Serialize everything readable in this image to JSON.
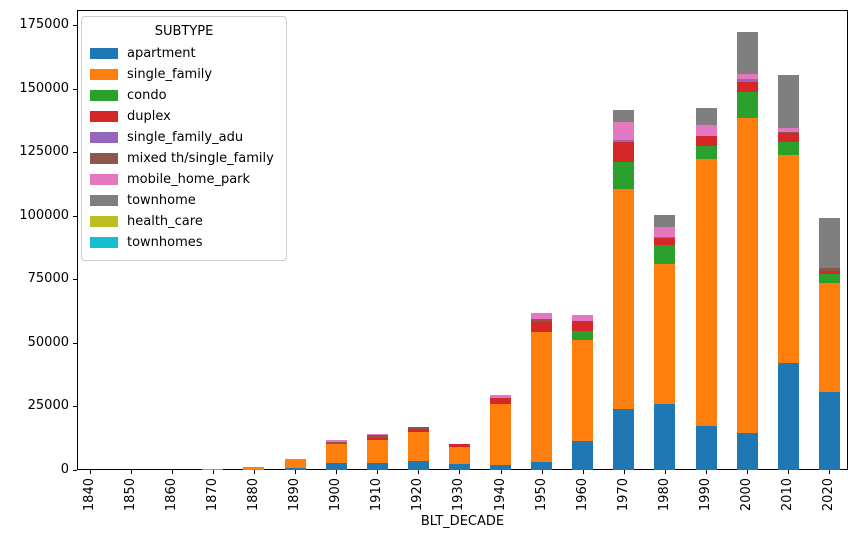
{
  "chart_data": {
    "type": "bar",
    "stacked": true,
    "title": "",
    "xlabel": "BLT_DECADE",
    "ylabel": "",
    "legend_title": "SUBTYPE",
    "legend_position": "upper left",
    "grid": false,
    "ylim": [
      0,
      180900
    ],
    "yticks": [
      0,
      25000,
      50000,
      75000,
      100000,
      125000,
      150000,
      175000
    ],
    "categories": [
      "1840",
      "1850",
      "1860",
      "1870",
      "1880",
      "1890",
      "1900",
      "1910",
      "1920",
      "1930",
      "1940",
      "1950",
      "1960",
      "1970",
      "1980",
      "1990",
      "2000",
      "2010",
      "2020"
    ],
    "series": [
      {
        "name": "apartment",
        "color": "#1f77b4",
        "values": [
          0,
          0,
          0,
          0,
          0,
          700,
          2700,
          2600,
          3600,
          2400,
          2000,
          3300,
          11400,
          23900,
          26000,
          17400,
          14700,
          42000,
          30800
        ]
      },
      {
        "name": "single_family",
        "color": "#ff7f0e",
        "values": [
          0,
          0,
          0,
          400,
          1300,
          3600,
          7400,
          9300,
          11400,
          6500,
          24000,
          51100,
          39700,
          86500,
          54900,
          104900,
          123600,
          81900,
          42600
        ]
      },
      {
        "name": "condo",
        "color": "#2ca02c",
        "values": [
          0,
          0,
          0,
          0,
          0,
          0,
          0,
          0,
          0,
          0,
          0,
          0,
          3700,
          10900,
          7600,
          5200,
          10500,
          5200,
          3700
        ]
      },
      {
        "name": "duplex",
        "color": "#d62728",
        "values": [
          0,
          0,
          0,
          0,
          0,
          0,
          0,
          800,
          1000,
          1200,
          2500,
          3700,
          3900,
          7700,
          2600,
          3900,
          3900,
          3300,
          1200
        ]
      },
      {
        "name": "single_family_adu",
        "color": "#9467bd",
        "values": [
          0,
          0,
          0,
          0,
          0,
          0,
          0,
          0,
          0,
          0,
          0,
          0,
          0,
          800,
          600,
          0,
          1000,
          0,
          0
        ]
      },
      {
        "name": "mixed th/single_family",
        "color": "#8c564b",
        "values": [
          0,
          0,
          0,
          0,
          0,
          0,
          800,
          900,
          900,
          0,
          0,
          1300,
          0,
          0,
          0,
          0,
          0,
          700,
          1000
        ]
      },
      {
        "name": "mobile_home_park",
        "color": "#e377c2",
        "values": [
          0,
          0,
          0,
          0,
          0,
          0,
          800,
          400,
          0,
          0,
          1100,
          2200,
          2400,
          7000,
          3900,
          4200,
          2200,
          1300,
          0
        ]
      },
      {
        "name": "townhome",
        "color": "#7f7f7f",
        "values": [
          0,
          0,
          0,
          0,
          0,
          0,
          0,
          0,
          0,
          0,
          0,
          0,
          0,
          4800,
          4600,
          6800,
          16400,
          21000,
          19700
        ]
      },
      {
        "name": "health_care",
        "color": "#bcbd22",
        "values": [
          0,
          0,
          0,
          0,
          0,
          0,
          0,
          0,
          0,
          0,
          0,
          0,
          0,
          0,
          0,
          0,
          0,
          0,
          0
        ]
      },
      {
        "name": "townhomes",
        "color": "#17becf",
        "values": [
          0,
          0,
          0,
          0,
          0,
          0,
          0,
          0,
          0,
          0,
          0,
          0,
          0,
          0,
          0,
          0,
          0,
          0,
          0
        ]
      }
    ]
  }
}
